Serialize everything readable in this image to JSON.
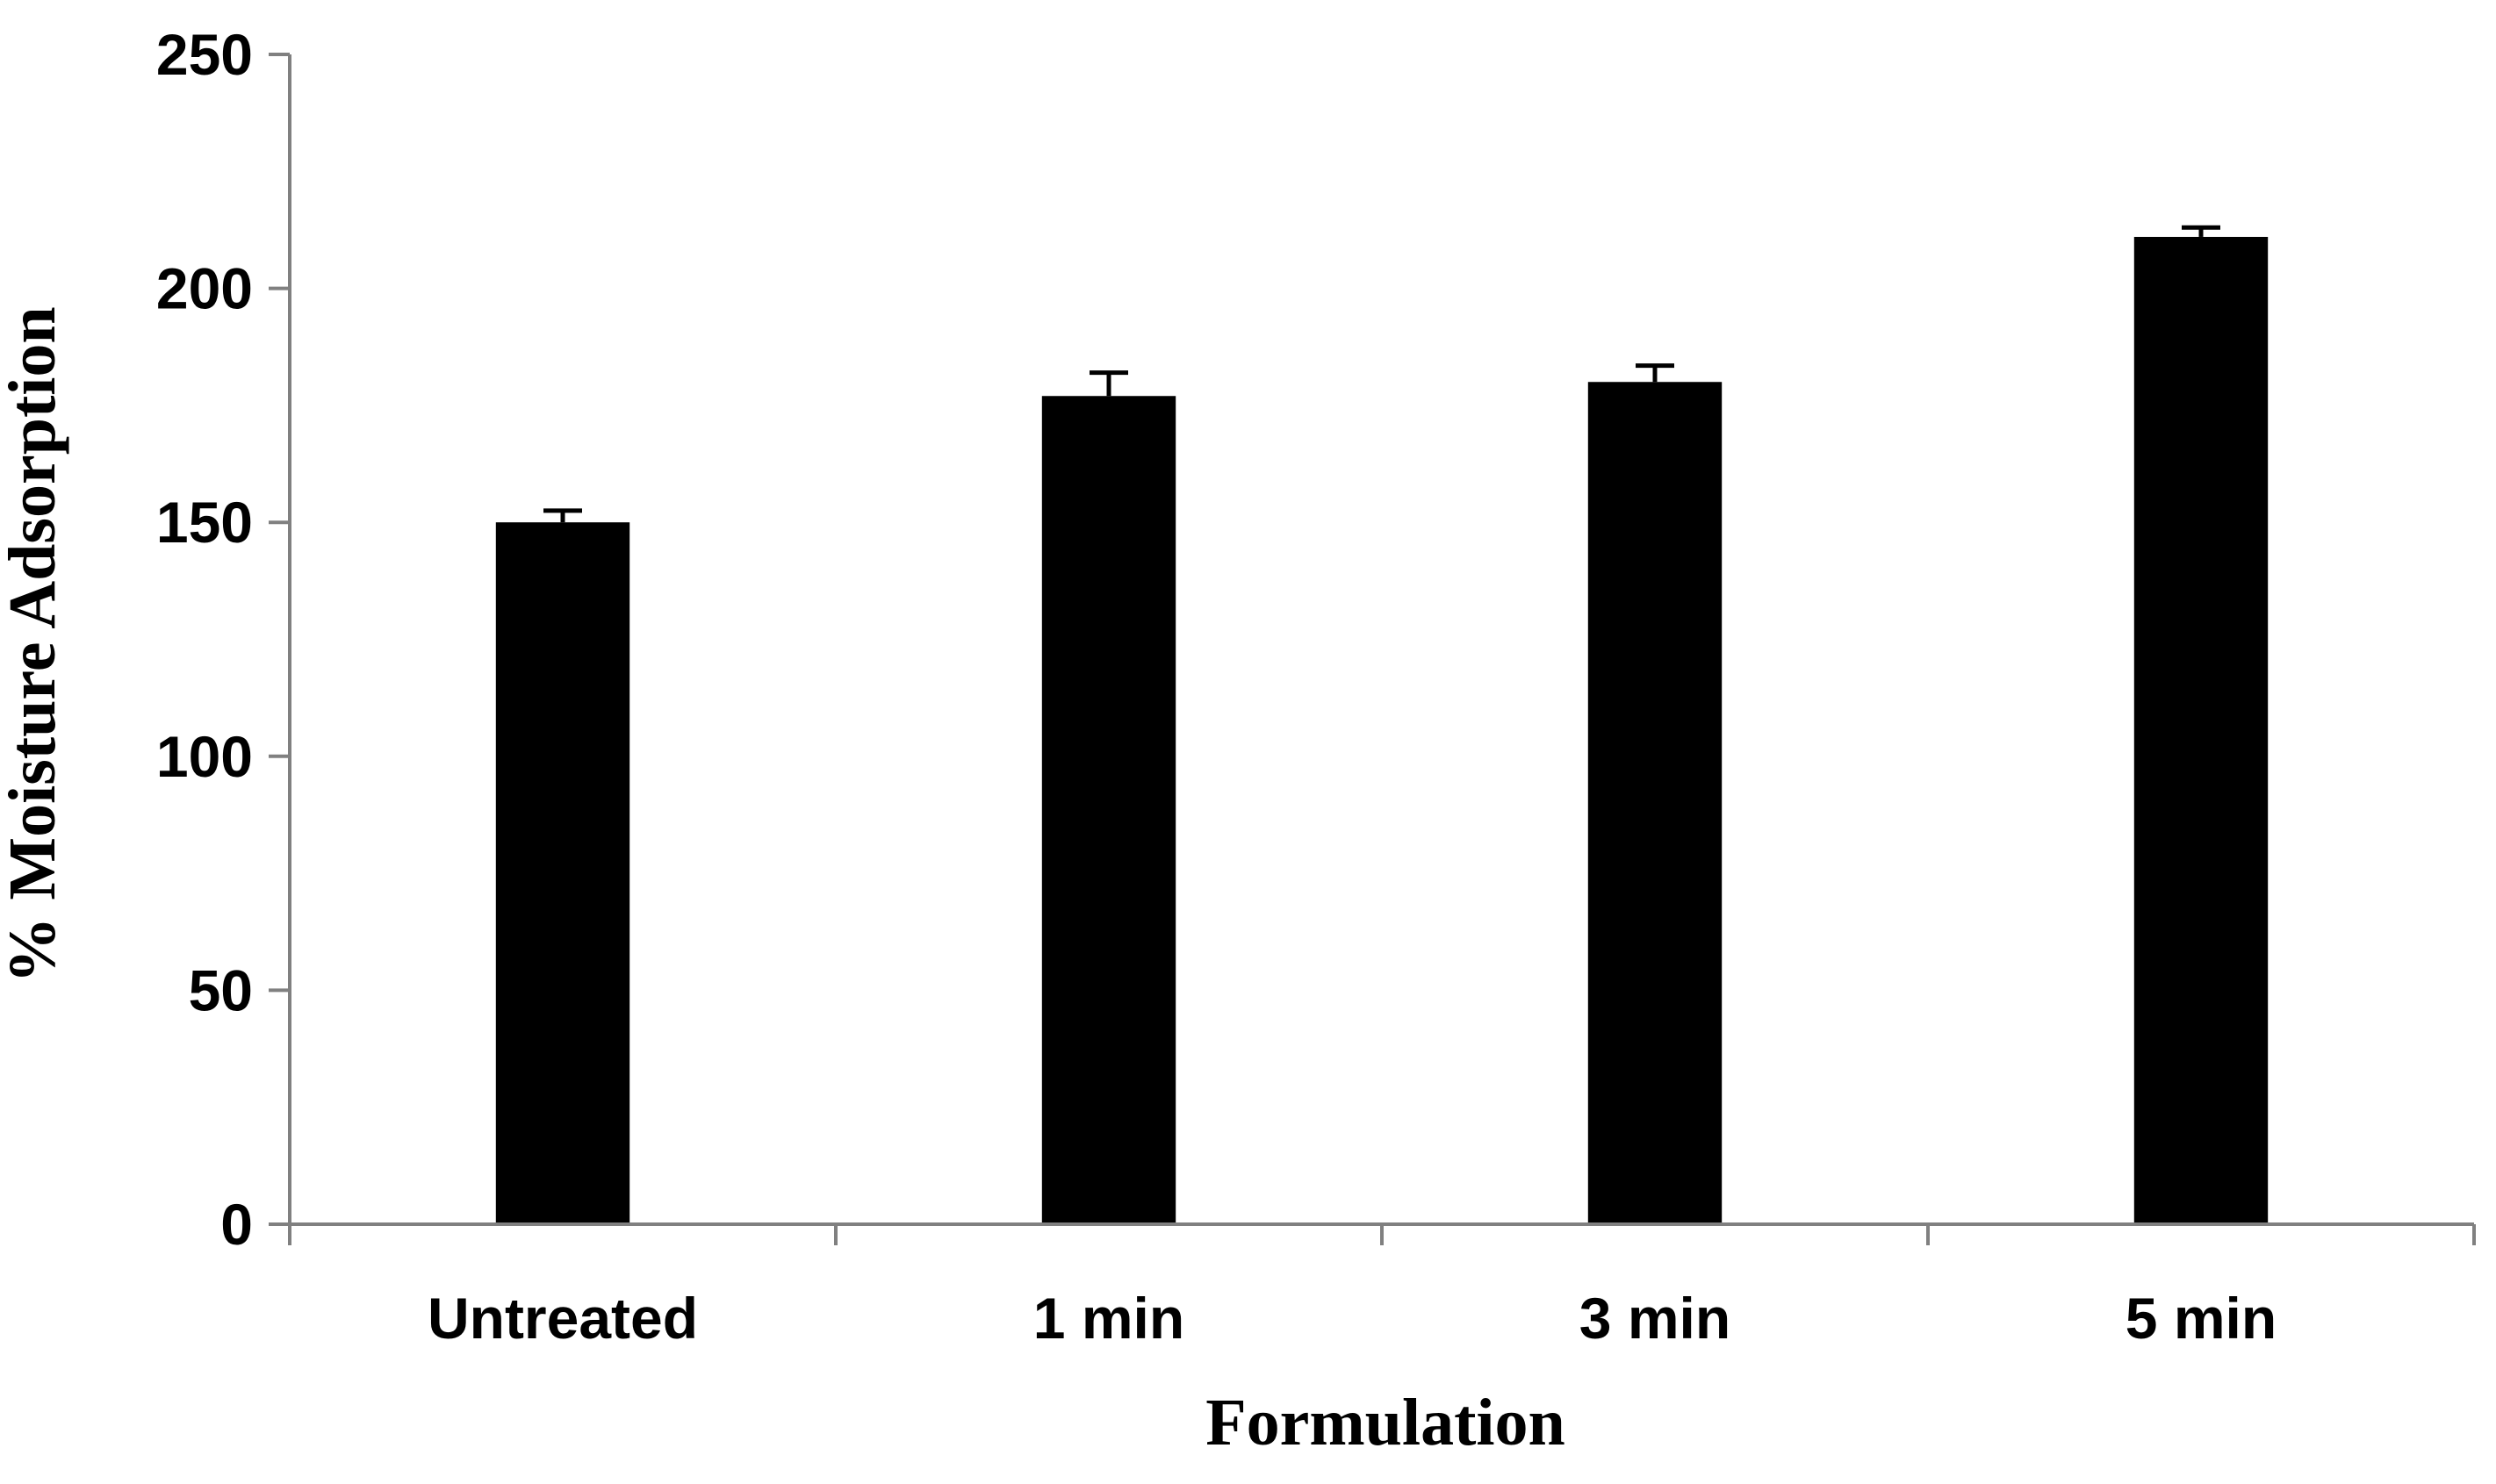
{
  "chart_data": {
    "type": "bar",
    "title": "",
    "xlabel": "Formulation",
    "ylabel": "% Moisture Adsorption",
    "categories": [
      "Untreated",
      "1 min",
      "3 min",
      "5 min"
    ],
    "values": [
      150,
      177,
      180,
      211
    ],
    "error": [
      2.5,
      5,
      3.5,
      2
    ],
    "ylim": [
      0,
      250
    ],
    "yticks": [
      "0",
      "50",
      "100",
      "150",
      "200",
      "250"
    ],
    "grid": false,
    "legend": "none",
    "colors": {
      "bar": "#000000",
      "axis": "#808080"
    }
  }
}
